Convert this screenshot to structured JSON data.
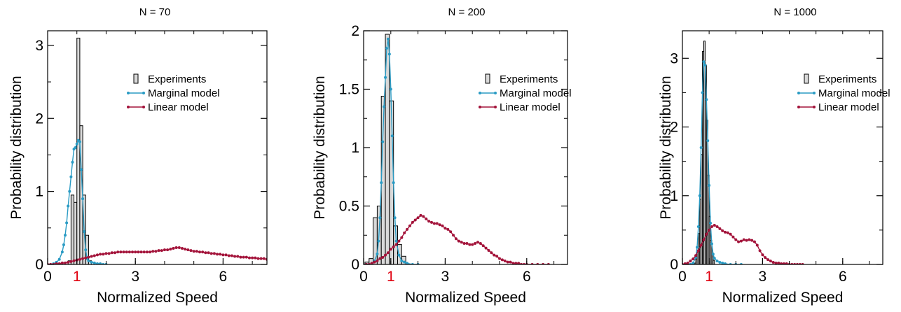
{
  "colors": {
    "bar_fill": "#d9d9d9",
    "marginal": "#2a9bc4",
    "linear": "#a3133a",
    "highlight_tick": "#e0000f"
  },
  "chart_data": [
    {
      "type": "bar",
      "title": "N = 70",
      "xlabel": "Normalized Speed",
      "ylabel": "Probability distribution",
      "xlim": [
        0,
        7.5
      ],
      "ylim": [
        0,
        3.2
      ],
      "xticks": [
        {
          "value": 0,
          "label": "0",
          "highlight": false
        },
        {
          "value": 1,
          "label": "1",
          "highlight": true
        },
        {
          "value": 3,
          "label": "3",
          "highlight": false
        },
        {
          "value": 6,
          "label": "6",
          "highlight": false
        }
      ],
      "yticks": [
        {
          "value": 0,
          "label": "0"
        },
        {
          "value": 1,
          "label": "1"
        },
        {
          "value": 2,
          "label": "2"
        },
        {
          "value": 3,
          "label": "3"
        }
      ],
      "legend": [
        "Experiments",
        "Marginal model",
        "Linear model"
      ],
      "legend_position": "top-right",
      "bin_width": 0.1,
      "bars": [
        {
          "x": 0.75,
          "y": 0.05
        },
        {
          "x": 0.85,
          "y": 0.95
        },
        {
          "x": 0.95,
          "y": 0.85
        },
        {
          "x": 1.05,
          "y": 3.1
        },
        {
          "x": 1.15,
          "y": 1.9
        },
        {
          "x": 1.25,
          "y": 0.95
        },
        {
          "x": 1.35,
          "y": 0.4
        },
        {
          "x": 1.45,
          "y": 0.05
        }
      ],
      "series": [
        {
          "name": "Marginal model",
          "x": [
            0.1,
            0.2,
            0.3,
            0.4,
            0.5,
            0.55,
            0.6,
            0.65,
            0.7,
            0.75,
            0.8,
            0.85,
            0.9,
            0.95,
            1.0,
            1.05,
            1.1,
            1.15,
            1.2,
            1.25,
            1.3,
            1.35,
            1.4,
            1.5,
            1.6,
            1.7,
            1.8,
            1.9,
            2.0
          ],
          "y": [
            0.0,
            0.01,
            0.03,
            0.07,
            0.17,
            0.27,
            0.4,
            0.57,
            0.8,
            1.0,
            1.2,
            1.4,
            1.58,
            1.6,
            1.65,
            1.7,
            1.68,
            1.3,
            0.9,
            0.45,
            0.2,
            0.08,
            0.05,
            0.03,
            0.02,
            0.01,
            0.01,
            0.0,
            0.0
          ]
        },
        {
          "name": "Linear model",
          "x": [
            0.0,
            0.1,
            0.2,
            0.3,
            0.4,
            0.5,
            0.6,
            0.7,
            0.8,
            0.9,
            1.0,
            1.1,
            1.2,
            1.3,
            1.4,
            1.5,
            1.6,
            1.7,
            1.8,
            1.9,
            2.0,
            2.1,
            2.2,
            2.3,
            2.4,
            2.5,
            2.6,
            2.7,
            2.8,
            2.9,
            3.0,
            3.1,
            3.2,
            3.3,
            3.4,
            3.5,
            3.6,
            3.7,
            3.8,
            3.9,
            4.0,
            4.1,
            4.2,
            4.3,
            4.4,
            4.5,
            4.6,
            4.7,
            4.8,
            4.9,
            5.0,
            5.1,
            5.2,
            5.3,
            5.4,
            5.5,
            5.6,
            5.7,
            5.8,
            5.9,
            6.0,
            6.1,
            6.2,
            6.3,
            6.4,
            6.5,
            6.6,
            6.7,
            6.8,
            6.9,
            7.0,
            7.1,
            7.2,
            7.3,
            7.4,
            7.5
          ],
          "y": [
            0.0,
            0.0,
            0.0,
            0.01,
            0.01,
            0.02,
            0.02,
            0.03,
            0.04,
            0.05,
            0.06,
            0.07,
            0.08,
            0.09,
            0.1,
            0.11,
            0.12,
            0.13,
            0.14,
            0.14,
            0.15,
            0.15,
            0.16,
            0.16,
            0.17,
            0.17,
            0.17,
            0.17,
            0.17,
            0.17,
            0.17,
            0.17,
            0.17,
            0.17,
            0.17,
            0.17,
            0.18,
            0.18,
            0.19,
            0.19,
            0.2,
            0.2,
            0.21,
            0.22,
            0.23,
            0.23,
            0.22,
            0.21,
            0.2,
            0.19,
            0.18,
            0.18,
            0.17,
            0.17,
            0.16,
            0.16,
            0.15,
            0.15,
            0.14,
            0.14,
            0.13,
            0.13,
            0.12,
            0.12,
            0.11,
            0.11,
            0.1,
            0.1,
            0.1,
            0.09,
            0.09,
            0.09,
            0.08,
            0.08,
            0.08,
            0.07
          ]
        }
      ]
    },
    {
      "type": "bar",
      "title": "N = 200",
      "xlabel": "Normalized Speed",
      "ylabel": "Probability distribution",
      "xlim": [
        0,
        7.5
      ],
      "ylim": [
        0,
        2.0
      ],
      "xticks": [
        {
          "value": 0,
          "label": "0",
          "highlight": false
        },
        {
          "value": 1,
          "label": "1",
          "highlight": true
        },
        {
          "value": 3,
          "label": "3",
          "highlight": false
        },
        {
          "value": 6,
          "label": "6",
          "highlight": false
        }
      ],
      "yticks": [
        {
          "value": 0,
          "label": "0"
        },
        {
          "value": 0.5,
          "label": "0.5"
        },
        {
          "value": 1,
          "label": "1"
        },
        {
          "value": 1.5,
          "label": "1.5"
        },
        {
          "value": 2,
          "label": "2"
        }
      ],
      "legend": [
        "Experiments",
        "Marginal model",
        "Linear model"
      ],
      "legend_position": "top-right",
      "bin_width": 0.15,
      "bars": [
        {
          "x": 0.125,
          "y": 0.02
        },
        {
          "x": 0.275,
          "y": 0.05
        },
        {
          "x": 0.425,
          "y": 0.4
        },
        {
          "x": 0.575,
          "y": 0.5
        },
        {
          "x": 0.725,
          "y": 1.44
        },
        {
          "x": 0.875,
          "y": 1.97
        },
        {
          "x": 1.025,
          "y": 1.4
        },
        {
          "x": 1.175,
          "y": 0.33
        },
        {
          "x": 1.325,
          "y": 0.17
        },
        {
          "x": 1.475,
          "y": 0.07
        }
      ],
      "series": [
        {
          "name": "Marginal model",
          "x": [
            0.1,
            0.2,
            0.3,
            0.4,
            0.5,
            0.55,
            0.6,
            0.65,
            0.7,
            0.75,
            0.8,
            0.85,
            0.9,
            0.95,
            1.0,
            1.05,
            1.1,
            1.15,
            1.2,
            1.3,
            1.4,
            1.5,
            1.6,
            1.8,
            2.0
          ],
          "y": [
            0.0,
            0.0,
            0.01,
            0.03,
            0.09,
            0.2,
            0.4,
            0.7,
            1.05,
            1.35,
            1.6,
            1.85,
            1.93,
            1.8,
            1.5,
            1.1,
            0.7,
            0.4,
            0.2,
            0.08,
            0.03,
            0.02,
            0.01,
            0.0,
            0.0
          ]
        },
        {
          "name": "Linear model",
          "x": [
            0.1,
            0.2,
            0.3,
            0.4,
            0.5,
            0.6,
            0.7,
            0.8,
            0.9,
            1.0,
            1.1,
            1.2,
            1.3,
            1.4,
            1.5,
            1.6,
            1.7,
            1.8,
            1.9,
            2.0,
            2.1,
            2.2,
            2.3,
            2.4,
            2.5,
            2.6,
            2.7,
            2.8,
            2.9,
            3.0,
            3.1,
            3.2,
            3.3,
            3.4,
            3.5,
            3.6,
            3.7,
            3.8,
            3.9,
            4.0,
            4.1,
            4.2,
            4.3,
            4.4,
            4.5,
            4.6,
            4.7,
            4.8,
            4.9,
            5.0,
            5.1,
            5.2,
            5.3,
            5.4,
            5.5,
            5.6,
            5.7,
            5.8,
            5.9,
            6.0,
            6.2,
            6.4,
            6.6,
            6.8
          ],
          "y": [
            0.0,
            0.0,
            0.01,
            0.02,
            0.03,
            0.05,
            0.06,
            0.08,
            0.1,
            0.13,
            0.15,
            0.17,
            0.2,
            0.23,
            0.27,
            0.3,
            0.33,
            0.36,
            0.38,
            0.4,
            0.42,
            0.41,
            0.39,
            0.37,
            0.36,
            0.35,
            0.35,
            0.34,
            0.33,
            0.31,
            0.3,
            0.28,
            0.25,
            0.22,
            0.2,
            0.19,
            0.18,
            0.18,
            0.17,
            0.17,
            0.18,
            0.19,
            0.18,
            0.16,
            0.14,
            0.12,
            0.1,
            0.08,
            0.07,
            0.05,
            0.04,
            0.03,
            0.02,
            0.02,
            0.01,
            0.01,
            0.01,
            0.0,
            0.0,
            0.0,
            0.0,
            0.0,
            0.0,
            0.0
          ]
        }
      ]
    },
    {
      "type": "bar",
      "title": "N = 1000",
      "xlabel": "Normalized Speed",
      "ylabel": "Probability distribution",
      "xlim": [
        0,
        7.5
      ],
      "ylim": [
        0,
        3.4
      ],
      "xticks": [
        {
          "value": 0,
          "label": "0",
          "highlight": false
        },
        {
          "value": 1,
          "label": "1",
          "highlight": true
        },
        {
          "value": 3,
          "label": "3",
          "highlight": false
        },
        {
          "value": 6,
          "label": "6",
          "highlight": false
        }
      ],
      "yticks": [
        {
          "value": 0,
          "label": "0"
        },
        {
          "value": 1,
          "label": "1"
        },
        {
          "value": 2,
          "label": "2"
        },
        {
          "value": 3,
          "label": "3"
        }
      ],
      "legend": [
        "Experiments",
        "Marginal model",
        "Linear model"
      ],
      "legend_position": "top-right",
      "bin_width": 0.05,
      "bars": [
        {
          "x": 0.475,
          "y": 0.02
        },
        {
          "x": 0.525,
          "y": 0.08
        },
        {
          "x": 0.575,
          "y": 0.18
        },
        {
          "x": 0.625,
          "y": 0.45
        },
        {
          "x": 0.675,
          "y": 0.95
        },
        {
          "x": 0.725,
          "y": 1.6
        },
        {
          "x": 0.775,
          "y": 3.1
        },
        {
          "x": 0.825,
          "y": 3.25
        },
        {
          "x": 0.875,
          "y": 2.9
        },
        {
          "x": 0.925,
          "y": 2.1
        },
        {
          "x": 0.975,
          "y": 1.3
        },
        {
          "x": 1.025,
          "y": 0.7
        },
        {
          "x": 1.075,
          "y": 0.35
        },
        {
          "x": 1.125,
          "y": 0.15
        },
        {
          "x": 1.175,
          "y": 0.06
        }
      ],
      "series": [
        {
          "name": "Marginal model",
          "x": [
            0.2,
            0.3,
            0.4,
            0.5,
            0.55,
            0.6,
            0.65,
            0.7,
            0.75,
            0.8,
            0.85,
            0.9,
            0.95,
            1.0,
            1.05,
            1.1,
            1.15,
            1.2,
            1.3,
            1.4,
            1.5,
            1.6,
            1.8,
            2.0,
            2.2
          ],
          "y": [
            0.0,
            0.0,
            0.02,
            0.1,
            0.25,
            0.55,
            1.0,
            1.7,
            2.5,
            2.95,
            2.9,
            2.4,
            1.8,
            1.15,
            0.6,
            0.3,
            0.15,
            0.09,
            0.05,
            0.03,
            0.02,
            0.01,
            0.0,
            0.0,
            0.0
          ],
          "points_every": 1
        },
        {
          "name": "Linear model",
          "x": [
            0.0,
            0.1,
            0.2,
            0.3,
            0.4,
            0.5,
            0.6,
            0.7,
            0.8,
            0.9,
            1.0,
            1.1,
            1.2,
            1.3,
            1.4,
            1.5,
            1.6,
            1.7,
            1.8,
            1.9,
            2.0,
            2.1,
            2.2,
            2.3,
            2.4,
            2.5,
            2.6,
            2.7,
            2.8,
            2.9,
            3.0,
            3.1,
            3.2,
            3.3,
            3.4,
            3.5,
            3.6,
            3.7,
            3.8,
            3.9,
            4.0,
            4.1,
            4.2,
            4.3,
            4.4,
            4.5
          ],
          "y": [
            0.0,
            0.01,
            0.02,
            0.05,
            0.08,
            0.13,
            0.2,
            0.28,
            0.36,
            0.44,
            0.5,
            0.55,
            0.57,
            0.55,
            0.52,
            0.49,
            0.47,
            0.46,
            0.44,
            0.4,
            0.36,
            0.33,
            0.34,
            0.36,
            0.35,
            0.36,
            0.35,
            0.33,
            0.28,
            0.2,
            0.14,
            0.1,
            0.07,
            0.05,
            0.03,
            0.02,
            0.02,
            0.01,
            0.01,
            0.01,
            0.0,
            0.0,
            0.0,
            0.0,
            0.0,
            0.0
          ]
        }
      ]
    }
  ]
}
